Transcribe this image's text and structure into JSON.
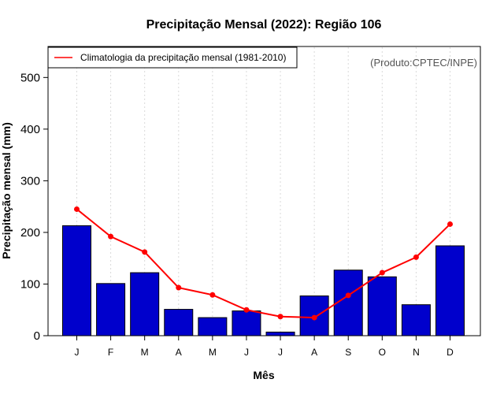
{
  "chart_data": {
    "type": "bar",
    "title": "Precipitação Mensal (2022): Região 106",
    "xlabel": "Mês",
    "ylabel": "Precipitação mensal (mm)",
    "ylim": [
      0,
      560
    ],
    "yticks": [
      0,
      100,
      200,
      300,
      400,
      500
    ],
    "categories": [
      "J",
      "F",
      "M",
      "A",
      "M",
      "J",
      "J",
      "A",
      "S",
      "O",
      "N",
      "D"
    ],
    "series": [
      {
        "name": "Precipitação mensal (2022)",
        "type": "bar",
        "color": "#0000cc",
        "values": [
          213,
          101,
          122,
          51,
          35,
          48,
          7,
          77,
          127,
          114,
          60,
          174
        ]
      },
      {
        "name": "Climatologia da precipitação mensal (1981-2010)",
        "type": "line",
        "color": "#ff0000",
        "values": [
          245,
          192,
          162,
          93,
          79,
          50,
          37,
          35,
          78,
          122,
          152,
          216
        ]
      }
    ],
    "legend": {
      "position": "top-left",
      "entries": [
        "Climatologia da precipitação mensal (1981-2010)"
      ]
    },
    "annotation": "(Produto:CPTEC/INPE)",
    "grid": true
  }
}
